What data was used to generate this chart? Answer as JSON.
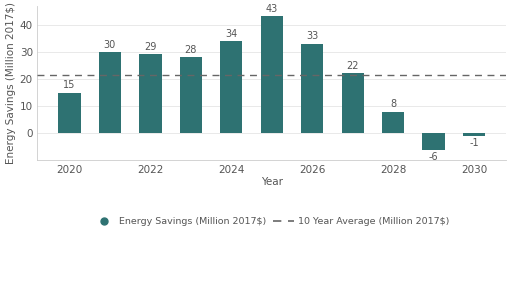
{
  "years": [
    2020,
    2021,
    2022,
    2023,
    2024,
    2025,
    2026,
    2027,
    2028,
    2029,
    2030
  ],
  "values": [
    15,
    30,
    29,
    28,
    34,
    43,
    33,
    22,
    8,
    -6,
    -1
  ],
  "avg_line": 21.4,
  "bar_color": "#2e7272",
  "avg_color": "#666666",
  "background_color": "#ffffff",
  "xlabel": "Year",
  "ylabel": "Energy Savings (Million 2017$)",
  "legend_bar_label": "Energy Savings (Million 2017$)",
  "legend_line_label": "10 Year Average (Million 2017$)",
  "ylim": [
    -10,
    47
  ],
  "yticks": [
    0,
    10,
    20,
    30,
    40
  ],
  "xticks": [
    2020,
    2022,
    2024,
    2026,
    2028,
    2030
  ],
  "label_fontsize": 7.5,
  "tick_fontsize": 7.5,
  "annot_fontsize": 7.0,
  "bar_width": 0.55
}
